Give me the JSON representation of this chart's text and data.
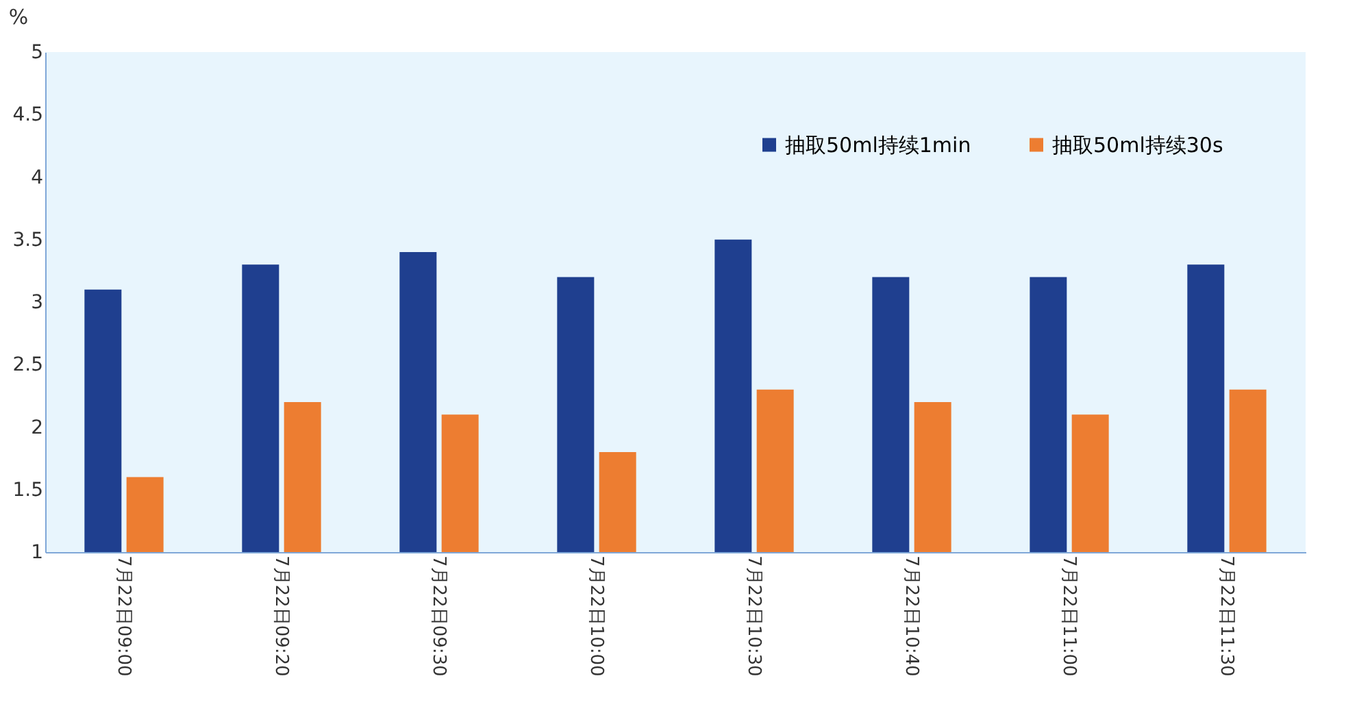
{
  "chart_data": {
    "type": "bar",
    "ylabel": "%",
    "categories": [
      "7月22日09:00",
      "7月22日09:20",
      "7月22日09:30",
      "7月22日10:00",
      "7月22日10:30",
      "7月22日10:40",
      "7月22日11:00",
      "7月22日11:30"
    ],
    "series": [
      {
        "name": "抽取50ml持续1min",
        "color": "#1f3f8f",
        "values": [
          3.1,
          3.3,
          3.4,
          3.2,
          3.5,
          3.2,
          3.2,
          3.3
        ]
      },
      {
        "name": "抽取50ml持续30s",
        "color": "#ed7d31",
        "values": [
          1.6,
          2.2,
          2.1,
          1.8,
          2.3,
          2.2,
          2.1,
          2.3
        ]
      }
    ],
    "ylim": [
      1,
      5
    ],
    "yticks": [
      1,
      1.5,
      2,
      2.5,
      3,
      3.5,
      4,
      4.5,
      5
    ],
    "grid": false,
    "legend": "top right"
  }
}
